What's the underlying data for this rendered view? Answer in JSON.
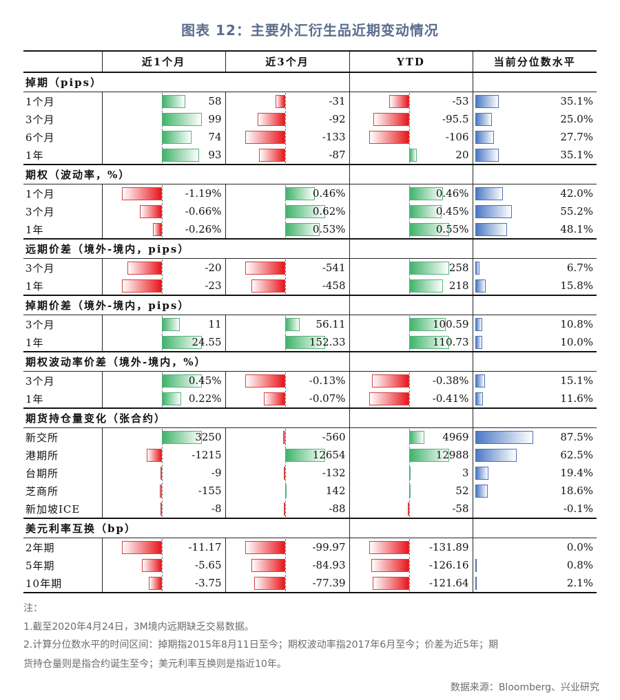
{
  "title": "图表 12：主要外汇衍生品近期变动情况",
  "header": {
    "label": "",
    "col1": "近1个月",
    "col2": "近3个月",
    "col3": "YTD",
    "col4": "当前分位数水平"
  },
  "colors": {
    "positive": "#3fb36a",
    "negative": "#e8161c",
    "percentile": "#4a78c4"
  },
  "sections": [
    {
      "title": "掉期（pips）",
      "rows": [
        {
          "label": "1个月",
          "values": [
            "58",
            "-31",
            "-53",
            "35.1%"
          ],
          "nums": [
            58,
            -31,
            -53
          ],
          "pct": 35.1
        },
        {
          "label": "3个月",
          "values": [
            "99",
            "-92",
            "-95.5",
            "25.0%"
          ],
          "nums": [
            99,
            -92,
            -95.5
          ],
          "pct": 25.0
        },
        {
          "label": "6个月",
          "values": [
            "74",
            "-133",
            "-106",
            "27.7%"
          ],
          "nums": [
            74,
            -133,
            -106
          ],
          "pct": 27.7
        },
        {
          "label": "1年",
          "values": [
            "93",
            "-87",
            "20",
            "35.1%"
          ],
          "nums": [
            93,
            -87,
            20
          ],
          "pct": 35.1
        }
      ]
    },
    {
      "title": "期权（波动率，%）",
      "rows": [
        {
          "label": "1个月",
          "values": [
            "-1.19%",
            "0.46%",
            "0.46%",
            "42.0%"
          ],
          "nums": [
            -1.19,
            0.46,
            0.46
          ],
          "pct": 42.0
        },
        {
          "label": "3个月",
          "values": [
            "-0.66%",
            "0.62%",
            "0.45%",
            "55.2%"
          ],
          "nums": [
            -0.66,
            0.62,
            0.45
          ],
          "pct": 55.2
        },
        {
          "label": "1年",
          "values": [
            "-0.26%",
            "0.53%",
            "0.55%",
            "48.1%"
          ],
          "nums": [
            -0.26,
            0.53,
            0.55
          ],
          "pct": 48.1
        }
      ]
    },
    {
      "title": "远期价差（境外-境内，pips）",
      "rows": [
        {
          "label": "3个月",
          "values": [
            "-20",
            "-541",
            "258",
            "6.7%"
          ],
          "nums": [
            -20,
            -541,
            258
          ],
          "pct": 6.7
        },
        {
          "label": "1年",
          "values": [
            "-23",
            "-458",
            "218",
            "15.8%"
          ],
          "nums": [
            -23,
            -458,
            218
          ],
          "pct": 15.8
        }
      ]
    },
    {
      "title": "掉期价差（境外-境内，pips）",
      "rows": [
        {
          "label": "3个月",
          "values": [
            "11",
            "56.11",
            "100.59",
            "10.8%"
          ],
          "nums": [
            11,
            56.11,
            100.59
          ],
          "pct": 10.8
        },
        {
          "label": "1年",
          "values": [
            "24.55",
            "152.33",
            "110.73",
            "10.0%"
          ],
          "nums": [
            24.55,
            152.33,
            110.73
          ],
          "pct": 10.0
        }
      ]
    },
    {
      "title": "期权波动率价差（境外-境内，%）",
      "rows": [
        {
          "label": "3个月",
          "values": [
            "0.45%",
            "-0.13%",
            "-0.38%",
            "15.1%"
          ],
          "nums": [
            0.45,
            -0.13,
            -0.38
          ],
          "pct": 15.1
        },
        {
          "label": "1年",
          "values": [
            "0.22%",
            "-0.07%",
            "-0.41%",
            "11.6%"
          ],
          "nums": [
            0.22,
            -0.07,
            -0.41
          ],
          "pct": 11.6
        }
      ]
    },
    {
      "title": "期货持仓量变化（张合约）",
      "rows": [
        {
          "label": "新交所",
          "values": [
            "3250",
            "-560",
            "4969",
            "87.5%"
          ],
          "nums": [
            3250,
            -560,
            4969
          ],
          "pct": 87.5
        },
        {
          "label": "港期所",
          "values": [
            "-1215",
            "12654",
            "12988",
            "62.5%"
          ],
          "nums": [
            -1215,
            12654,
            12988
          ],
          "pct": 62.5
        },
        {
          "label": "台期所",
          "values": [
            "-9",
            "-132",
            "3",
            "19.4%"
          ],
          "nums": [
            -9,
            -132,
            3
          ],
          "pct": 19.4
        },
        {
          "label": "芝商所",
          "values": [
            "-155",
            "142",
            "52",
            "18.6%"
          ],
          "nums": [
            -155,
            142,
            52
          ],
          "pct": 18.6
        },
        {
          "label": "新加坡ICE",
          "values": [
            "-8",
            "-88",
            "-58",
            "-0.1%"
          ],
          "nums": [
            -8,
            -88,
            -58
          ],
          "pct": -0.1
        }
      ]
    },
    {
      "title": "美元利率互换（bp）",
      "rows": [
        {
          "label": "2年期",
          "values": [
            "-11.17",
            "-99.97",
            "-131.89",
            "0.0%"
          ],
          "nums": [
            -11.17,
            -99.97,
            -131.89
          ],
          "pct": 0.0
        },
        {
          "label": "5年期",
          "values": [
            "-5.65",
            "-84.93",
            "-126.16",
            "0.8%"
          ],
          "nums": [
            -5.65,
            -84.93,
            -126.16
          ],
          "pct": 0.8
        },
        {
          "label": "10年期",
          "values": [
            "-3.75",
            "-77.39",
            "-121.64",
            "2.1%"
          ],
          "nums": [
            -3.75,
            -77.39,
            -121.64
          ],
          "pct": 2.1
        }
      ]
    }
  ],
  "notes": {
    "heading": "注：",
    "line1": "1.截至2020年4月24日，3M境内远期缺乏交易数据。",
    "line2": "2.计算分位数水平的时间区间：掉期指2015年8月11日至今；期权波动率指2017年6月至今；价差为近5年；期",
    "line3": "货持仓量则是指合约诞生至今；美元利率互换则是指近10年。"
  },
  "source": "数据来源：Bloomberg、兴业研究"
}
